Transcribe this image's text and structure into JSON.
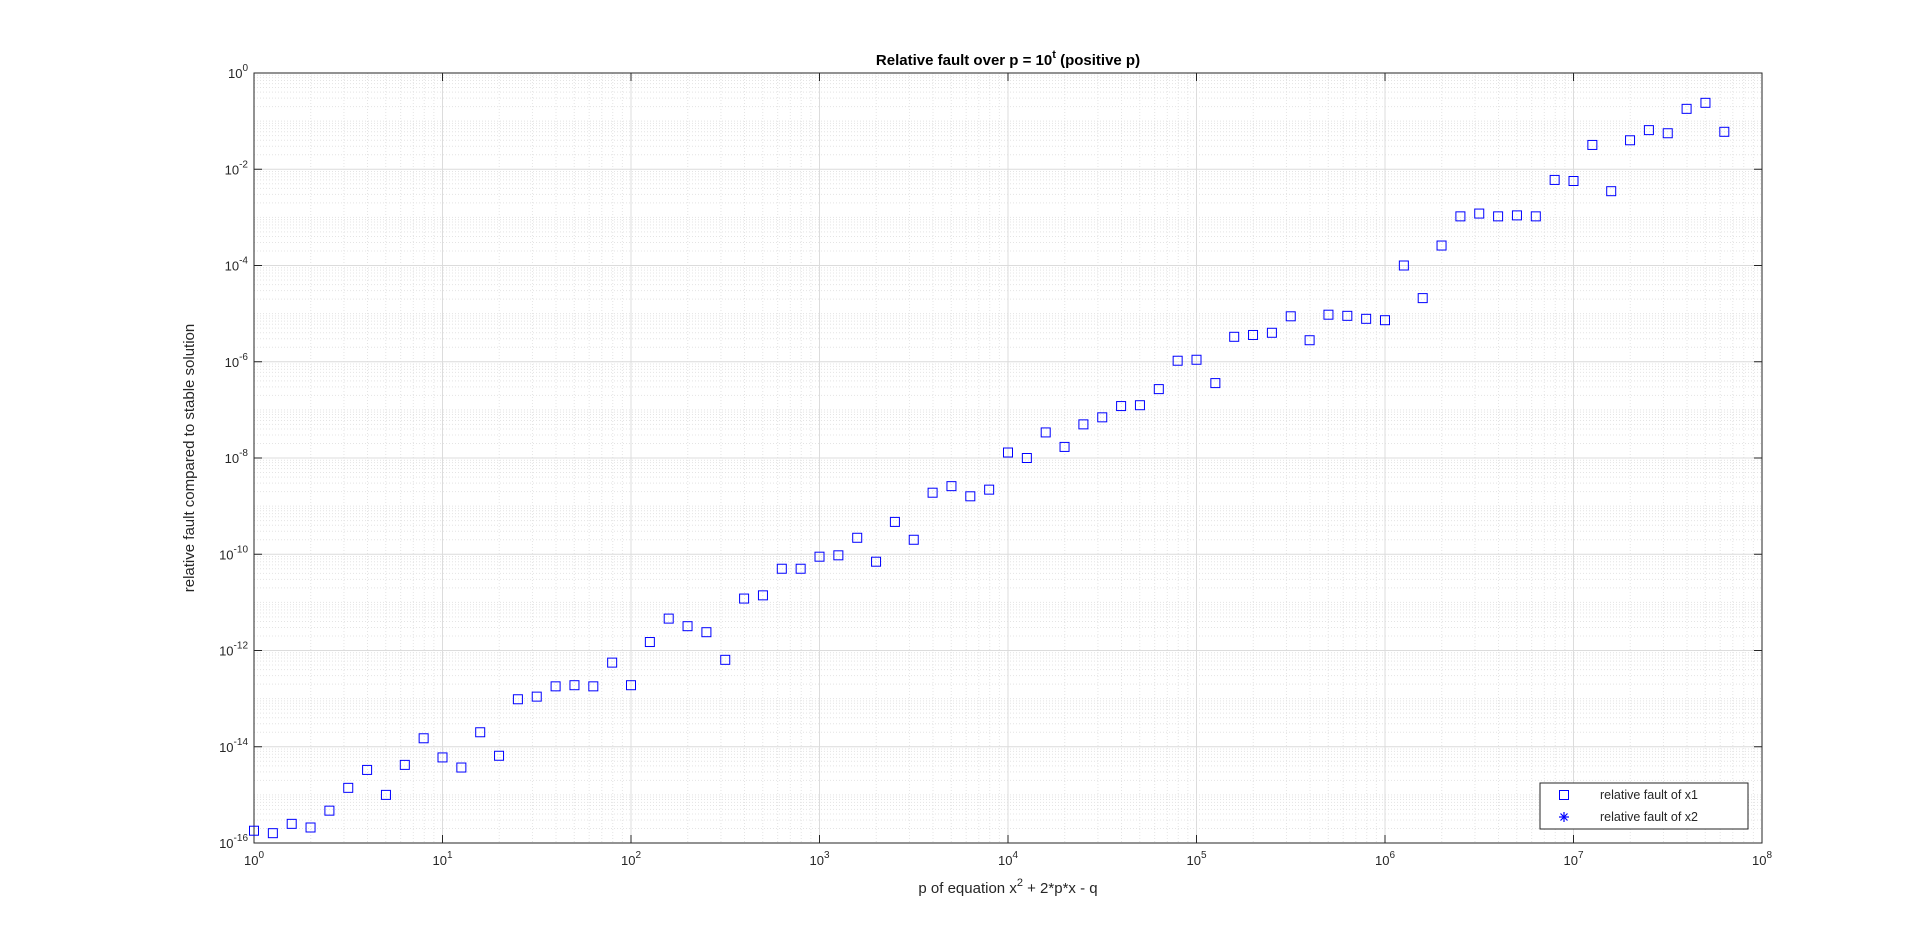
{
  "chart_data": {
    "type": "scatter",
    "title": "Relative fault over p = 10",
    "title_exp": "t",
    "title_suffix": " (positive p)",
    "xlabel_pre": "p of equation x",
    "xlabel_exp": "2",
    "xlabel_post": " + 2*p*x - q",
    "ylabel": "relative fault compared to stable solution",
    "xscale": "log",
    "yscale": "log",
    "xlim": [
      1,
      100000000
    ],
    "ylim": [
      1e-16,
      1
    ],
    "grid": true,
    "minor_grid": true,
    "legend_position": "bottom-right",
    "x_ticks": [
      {
        "base": "10",
        "exp": "0",
        "value": 1
      },
      {
        "base": "10",
        "exp": "1",
        "value": 10
      },
      {
        "base": "10",
        "exp": "2",
        "value": 100
      },
      {
        "base": "10",
        "exp": "3",
        "value": 1000
      },
      {
        "base": "10",
        "exp": "4",
        "value": 10000
      },
      {
        "base": "10",
        "exp": "5",
        "value": 100000
      },
      {
        "base": "10",
        "exp": "6",
        "value": 1000000
      },
      {
        "base": "10",
        "exp": "7",
        "value": 10000000
      },
      {
        "base": "10",
        "exp": "8",
        "value": 100000000
      }
    ],
    "y_ticks": [
      {
        "base": "10",
        "exp": "0",
        "value": 1
      },
      {
        "base": "10",
        "exp": "-2",
        "value": 0.01
      },
      {
        "base": "10",
        "exp": "-4",
        "value": 0.0001
      },
      {
        "base": "10",
        "exp": "-6",
        "value": 1e-06
      },
      {
        "base": "10",
        "exp": "-8",
        "value": 1e-08
      },
      {
        "base": "10",
        "exp": "-10",
        "value": 1e-10
      },
      {
        "base": "10",
        "exp": "-12",
        "value": 1e-12
      },
      {
        "base": "10",
        "exp": "-14",
        "value": 1e-14
      },
      {
        "base": "10",
        "exp": "-16",
        "value": 1e-16
      }
    ],
    "series": [
      {
        "name": "relative fault of x1",
        "marker": "square",
        "color": "#0000ff",
        "x": [
          1,
          1.259,
          1.585,
          1.995,
          2.512,
          3.162,
          3.981,
          5.012,
          6.31,
          7.943,
          10,
          12.59,
          15.85,
          19.95,
          25.12,
          31.62,
          39.81,
          50.12,
          63.1,
          79.43,
          100,
          125.9,
          158.5,
          199.5,
          251.2,
          316.2,
          398.1,
          501.2,
          631,
          794.3,
          1000,
          1259,
          1585,
          1995,
          2512,
          3162,
          3981,
          5012,
          6310,
          7943,
          10000,
          12590,
          15850,
          19950,
          25120,
          31620,
          39810,
          50120,
          63100,
          79430,
          100000,
          125900,
          158500,
          199500,
          251200,
          316200,
          398100,
          501200,
          631000,
          794300,
          1000000,
          1259000,
          1585000,
          1995000,
          2512000,
          3162000,
          3981000,
          5012000,
          6310000,
          7943000,
          10000000,
          12590000,
          15850000,
          19950000,
          25120000,
          31620000,
          39810000,
          50120000,
          63100000
        ],
        "values": [
          1.8e-16,
          1.6e-16,
          2.5e-16,
          2.1e-16,
          4.7e-16,
          1.4e-15,
          3.3e-15,
          1e-15,
          4.2e-15,
          1.5e-14,
          6e-15,
          3.7e-15,
          2e-14,
          6.5e-15,
          9.7e-14,
          1.1e-13,
          1.8e-13,
          1.9e-13,
          1.8e-13,
          5.6e-13,
          1.9e-13,
          1.5e-12,
          4.6e-12,
          3.2e-12,
          2.4e-12,
          6.4e-13,
          1.2e-11,
          1.4e-11,
          5e-11,
          5e-11,
          8.9e-11,
          9.5e-11,
          2.2e-10,
          7e-11,
          4.7e-10,
          2e-10,
          1.9e-09,
          2.6e-09,
          1.6e-09,
          2.2e-09,
          1.3e-08,
          1e-08,
          3.4e-08,
          1.7e-08,
          5e-08,
          7e-08,
          1.2e-07,
          1.25e-07,
          2.7e-07,
          1.05e-06,
          1.1e-06,
          3.6e-07,
          3.3e-06,
          3.6e-06,
          4e-06,
          8.8e-06,
          2.8e-06,
          9.5e-06,
          9e-06,
          7.8e-06,
          7.3e-06,
          0.0001,
          2.1e-05,
          0.00026,
          0.00105,
          0.0012,
          0.00105,
          0.0011,
          0.00105,
          0.006,
          0.0057,
          0.032,
          0.0035,
          0.04,
          0.065,
          0.056,
          0.18,
          0.24,
          0.06
        ]
      },
      {
        "name": "relative fault of x2",
        "marker": "asterisk",
        "color": "#0000ff",
        "x": [],
        "values": []
      }
    ]
  }
}
